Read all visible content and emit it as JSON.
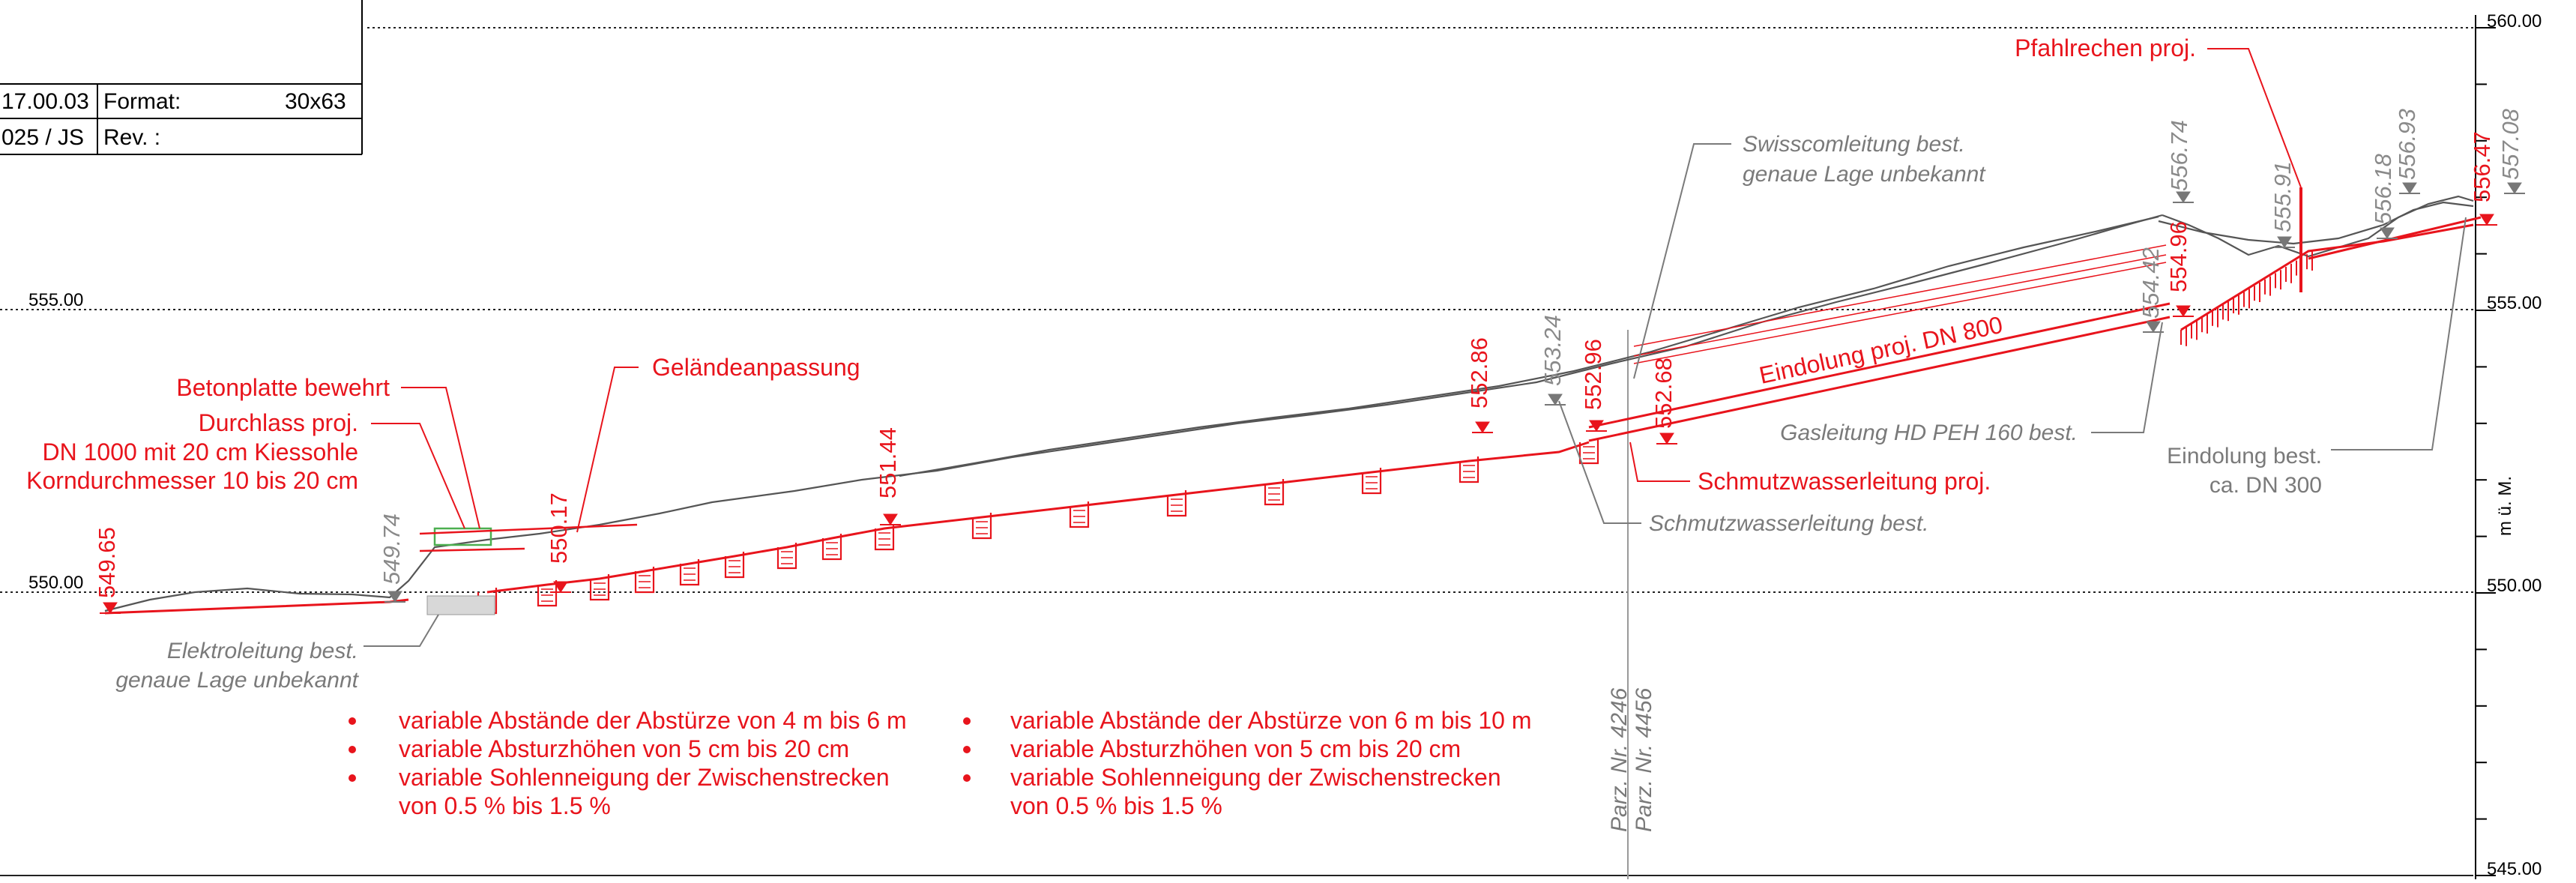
{
  "title_block": {
    "date": "17.00.03",
    "format_label": "Format:",
    "format_value": "30x63",
    "author": "025 / JS",
    "rev_label": "Rev. :"
  },
  "axis": {
    "unit": "m ü. M.",
    "levels": [
      {
        "value": 560,
        "label": "560.00"
      },
      {
        "value": 555,
        "label": "555.00"
      },
      {
        "value": 550,
        "label": "550.00"
      },
      {
        "value": 545,
        "label": "545.00"
      }
    ],
    "left_labels": [
      {
        "value": 555,
        "label": "555.00"
      },
      {
        "value": 550,
        "label": "550.00"
      }
    ]
  },
  "elevations_red": [
    {
      "name": "elev-549-65",
      "label": "549.65"
    },
    {
      "name": "elev-550-17",
      "label": "550.17"
    },
    {
      "name": "elev-551-44",
      "label": "551.44"
    },
    {
      "name": "elev-552-86",
      "label": "552.86"
    },
    {
      "name": "elev-552-96",
      "label": "552.96"
    },
    {
      "name": "elev-552-68",
      "label": "552.68"
    },
    {
      "name": "elev-554-96",
      "label": "554.96"
    },
    {
      "name": "elev-556-47",
      "label": "556.47"
    }
  ],
  "elevations_grey": [
    {
      "name": "elev-549-74",
      "label": "549.74"
    },
    {
      "name": "elev-553-24",
      "label": "553.24"
    },
    {
      "name": "elev-554-42",
      "label": "554.42"
    },
    {
      "name": "elev-556-74",
      "label": "556.74"
    },
    {
      "name": "elev-555-91",
      "label": "555.91"
    },
    {
      "name": "elev-556-18",
      "label": "556.18"
    },
    {
      "name": "elev-556-93",
      "label": "556.93"
    },
    {
      "name": "elev-557-08",
      "label": "557.08"
    }
  ],
  "annotations": {
    "betonplatte": "Betonplatte bewehrt",
    "durchlass_1": "Durchlass proj.",
    "durchlass_2": "DN 1000 mit 20 cm Kiessohle",
    "durchlass_3": "Korndurchmesser 10 bis 20 cm",
    "gelaende": "Geländeanpassung",
    "elektro_1": "Elektroleitung best.",
    "elektro_2": "genaue Lage unbekannt",
    "swisscom_1": "Swisscomleitung best.",
    "swisscom_2": "genaue Lage unbekannt",
    "eindolung_proj": "Eindolung proj. DN 800",
    "gasleitung": "Gasleitung HD PEH 160 best.",
    "schmutz_proj": "Schmutzwasserleitung proj.",
    "schmutz_best": "Schmutzwasserleitung best.",
    "pfahlrechen": "Pfahlrechen proj.",
    "eindolung_best_1": "Eindolung best.",
    "eindolung_best_2": "ca. DN 300",
    "parz_1": "Parz. Nr. 4246",
    "parz_2": "Parz. Nr. 4456"
  },
  "notes_left": [
    "variable Abstände der Abstürze von 4 m bis 6 m",
    "variable Absturzhöhen von 5 cm bis 20 cm",
    "variable Sohlenneigung der Zwischenstrecken",
    "von 0.5 % bis 1.5 %"
  ],
  "notes_right": [
    "variable Abstände der Abstürze von 6 m bis 10 m",
    "variable Absturzhöhen von 5 cm bis 20 cm",
    "variable Sohlenneigung der Zwischenstrecken",
    "von 0.5 % bis 1.5 %"
  ],
  "colors": {
    "project": "#e8141c",
    "existing": "#7a7a7a",
    "terrain": "#555555",
    "grid": "#222222"
  }
}
